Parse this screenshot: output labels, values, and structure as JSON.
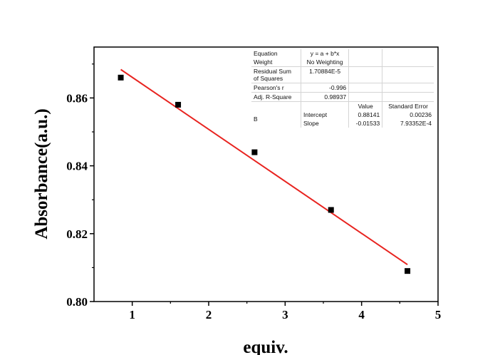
{
  "chart_data": {
    "type": "scatter",
    "xlabel": "equiv.",
    "ylabel": "Absorbance(a.u.)",
    "xlim": [
      0.5,
      5.0
    ],
    "ylim": [
      0.8,
      0.875
    ],
    "x_ticks": [
      "1",
      "2",
      "3",
      "4",
      "5"
    ],
    "y_ticks": [
      "0.80",
      "0.82",
      "0.84",
      "0.86"
    ],
    "points": {
      "x": [
        0.85,
        1.6,
        2.6,
        3.6,
        4.6
      ],
      "y": [
        0.866,
        0.858,
        0.844,
        0.827,
        0.809
      ]
    },
    "fit": {
      "type": "linear",
      "intercept": 0.88141,
      "slope": -0.01533,
      "x_range": [
        0.85,
        4.6
      ],
      "color": "#e8231f"
    },
    "marker_color": "#000000",
    "grid": false
  },
  "fit_table": {
    "equation_label": "Equation",
    "equation_value": "y = a + b*x",
    "weight_label": "Weight",
    "weight_value": "No Weighting",
    "rss_label_line1": "Residual Sum",
    "rss_label_line2": "of Squares",
    "rss_value": "1.70884E-5",
    "pearson_label": "Pearson's r",
    "pearson_value": "-0.996",
    "adjr2_label": "Adj. R-Square",
    "adjr2_value": "0.98937",
    "col_value": "Value",
    "col_stderr": "Standard Error",
    "param_group": "B",
    "intercept_label": "Intercept",
    "intercept_value": "0.88141",
    "intercept_se": "0.00236",
    "slope_label": "Slope",
    "slope_value": "-0.01533",
    "slope_se": "7.93352E-4"
  }
}
